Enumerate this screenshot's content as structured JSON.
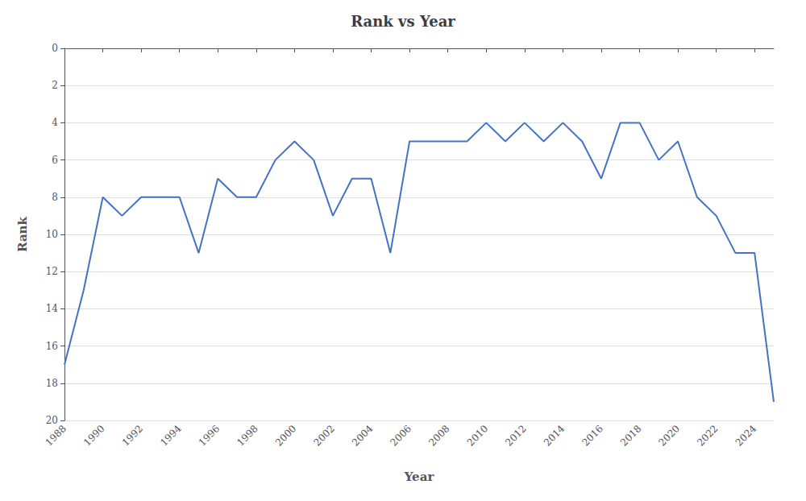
{
  "chart_data": {
    "type": "line",
    "title": "Rank vs Year",
    "xlabel": "Year",
    "ylabel": "Rank",
    "x": [
      1988,
      1989,
      1990,
      1991,
      1992,
      1993,
      1994,
      1995,
      1996,
      1997,
      1998,
      1999,
      2000,
      2001,
      2002,
      2003,
      2004,
      2005,
      2006,
      2007,
      2008,
      2009,
      2010,
      2011,
      2012,
      2013,
      2014,
      2015,
      2016,
      2017,
      2018,
      2019,
      2020,
      2021,
      2022,
      2023,
      2024,
      2025
    ],
    "values": [
      17,
      13,
      8,
      9,
      8,
      8,
      8,
      11,
      7,
      8,
      8,
      6,
      5,
      6,
      9,
      7,
      7,
      11,
      5,
      5,
      5,
      5,
      4,
      5,
      4,
      5,
      4,
      5,
      7,
      4,
      4,
      6,
      5,
      8,
      9,
      11,
      11,
      19
    ],
    "color": "#4472C4",
    "xlim": [
      1988,
      2025
    ],
    "xticks": [
      1988,
      1990,
      1992,
      1994,
      1996,
      1998,
      2000,
      2002,
      2004,
      2006,
      2008,
      2010,
      2012,
      2014,
      2016,
      2018,
      2020,
      2022,
      2024
    ],
    "ylim": [
      20,
      0
    ],
    "yticks": [
      0,
      2,
      4,
      6,
      8,
      10,
      12,
      14,
      16,
      18,
      20
    ],
    "grid": true
  }
}
